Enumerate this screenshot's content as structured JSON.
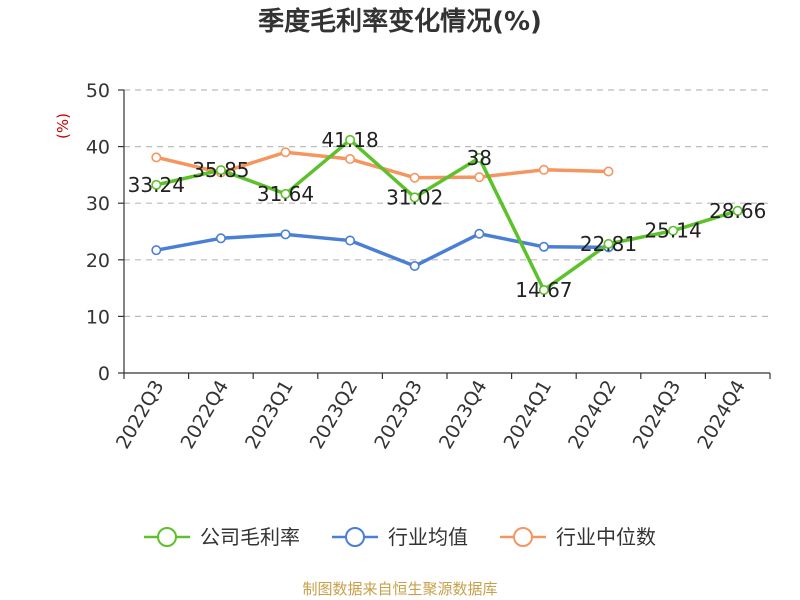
{
  "chart_data": {
    "type": "line",
    "title": "季度毛利率变化情况(%)",
    "ylabel": "(%)",
    "xlabel": "",
    "categories": [
      "2022Q3",
      "2022Q4",
      "2023Q1",
      "2023Q2",
      "2023Q3",
      "2023Q4",
      "2024Q1",
      "2024Q2",
      "2024Q3",
      "2024Q4"
    ],
    "ylim": [
      0,
      50
    ],
    "yticks": [
      0,
      10,
      20,
      30,
      40,
      50
    ],
    "grid": true,
    "legend_position": "bottom",
    "series": [
      {
        "name": "公司毛利率",
        "color": "#5cc12b",
        "values": [
          33.24,
          35.85,
          31.64,
          41.18,
          31.02,
          38,
          14.67,
          22.81,
          25.14,
          28.66
        ],
        "labels": [
          "33.24",
          "35.85",
          "31.64",
          "41.18",
          "31.02",
          "38",
          "14.67",
          "22.81",
          "25.14",
          "28.66"
        ]
      },
      {
        "name": "行业均值",
        "color": "#4a7fd6",
        "values": [
          21.7,
          23.8,
          24.5,
          23.4,
          18.9,
          24.6,
          22.3,
          22.2,
          null,
          null
        ]
      },
      {
        "name": "行业中位数",
        "color": "#f59560",
        "values": [
          38.1,
          35.4,
          39.0,
          37.8,
          34.5,
          34.6,
          35.9,
          35.6,
          null,
          null
        ]
      }
    ],
    "source": "制图数据来自恒生聚源数据库"
  }
}
